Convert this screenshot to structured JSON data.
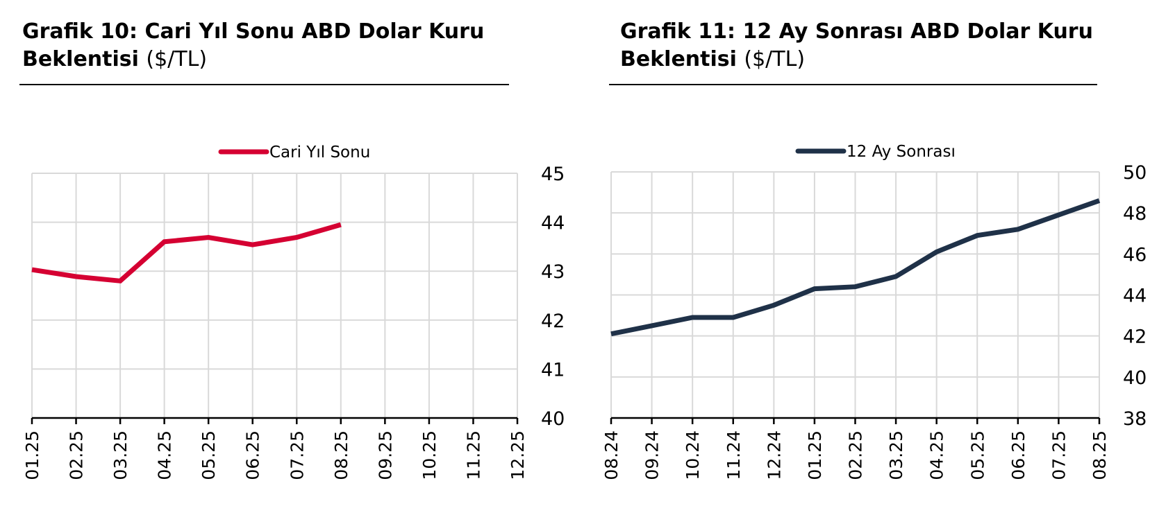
{
  "charts": [
    {
      "title_bold": "Grafik 10: Cari Yıl Sonu ABD Dolar Kuru Beklentisi",
      "title_unit": "($/TL)"
    },
    {
      "title_bold": "Grafik 11: 12 Ay Sonrası ABD Dolar Kuru Beklentisi",
      "title_unit": "($/TL)"
    }
  ],
  "chart_data": [
    {
      "type": "line",
      "title": "Grafik 10: Cari Yıl Sonu ABD Dolar Kuru Beklentisi ($/TL)",
      "categories": [
        "01.25",
        "02.25",
        "03.25",
        "04.25",
        "05.25",
        "06.25",
        "07.25",
        "08.25",
        "09.25",
        "10.25",
        "11.25",
        "12.25"
      ],
      "series": [
        {
          "name": "Cari Yıl Sonu",
          "color": "#d50032",
          "values": [
            43.03,
            42.89,
            42.8,
            43.6,
            43.69,
            43.54,
            43.69,
            43.95,
            null,
            null,
            null,
            null
          ]
        }
      ],
      "yaxis": {
        "position": "right",
        "ylim": [
          40,
          45
        ],
        "ticks": [
          40,
          41,
          42,
          43,
          44,
          45
        ]
      },
      "grid": true,
      "legend": "top-center"
    },
    {
      "type": "line",
      "title": "Grafik 11: 12 Ay Sonrası ABD Dolar Kuru Beklentisi ($/TL)",
      "categories": [
        "08.24",
        "09.24",
        "10.24",
        "11.24",
        "12.24",
        "01.25",
        "02.25",
        "03.25",
        "04.25",
        "05.25",
        "06.25",
        "07.25",
        "08.25"
      ],
      "series": [
        {
          "name": "12 Ay Sonrası",
          "color": "#1f3148",
          "values": [
            42.1,
            42.5,
            42.9,
            42.9,
            43.5,
            44.3,
            44.4,
            44.9,
            46.1,
            46.9,
            47.2,
            47.9,
            48.6
          ]
        }
      ],
      "yaxis": {
        "position": "right",
        "ylim": [
          38,
          50
        ],
        "ticks": [
          38,
          40,
          42,
          44,
          46,
          48,
          50
        ]
      },
      "grid": true,
      "legend": "top-center"
    }
  ]
}
